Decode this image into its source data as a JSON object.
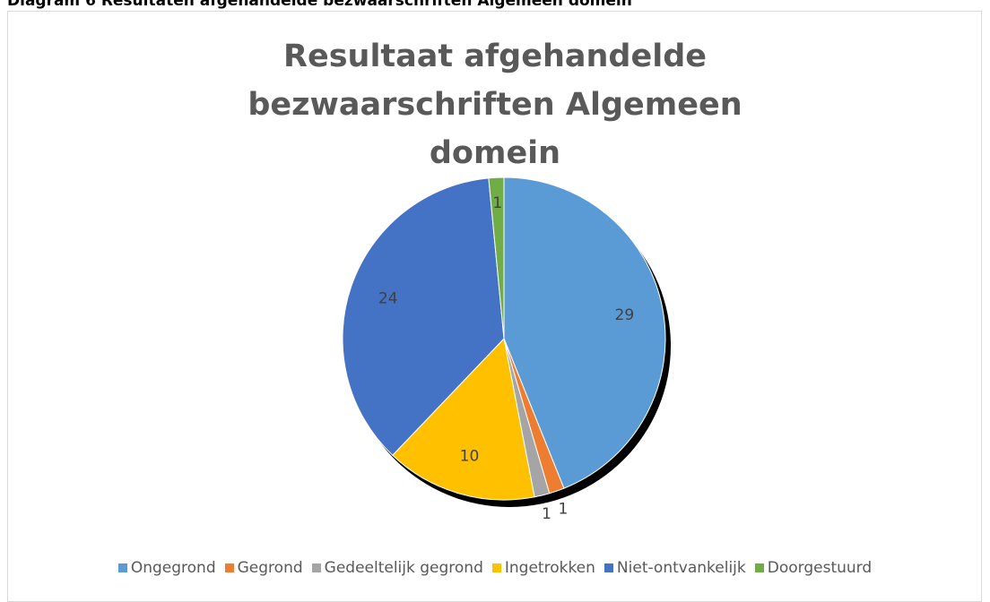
{
  "caption": "Diagram 6 Resultaten afgehandelde bezwaarschriften Algemeen domein",
  "chart_data": {
    "type": "pie",
    "title": "Resultaat afgehandelde bezwaarschriften Algemeen domein",
    "categories": [
      "Ongegrond",
      "Gegrond",
      "Gedeeltelijk gegrond",
      "Ingetrokken",
      "Niet-ontvankelijk",
      "Doorgestuurd"
    ],
    "values": [
      29,
      1,
      1,
      10,
      24,
      1
    ],
    "colors": [
      "#5b9bd5",
      "#ed7d31",
      "#a5a5a5",
      "#ffc000",
      "#4472c4",
      "#70ad47"
    ],
    "legend": "bottom"
  }
}
